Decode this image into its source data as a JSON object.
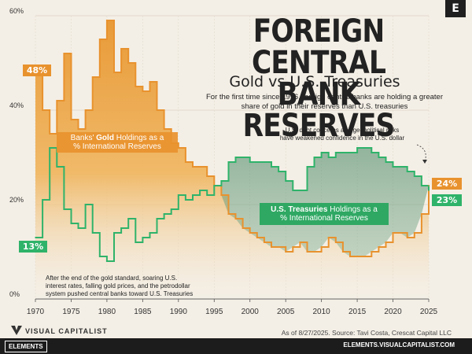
{
  "header": {
    "title_line1": "FOREIGN CENTRAL",
    "title_line2": "BANK RESERVES",
    "subtitle": "Gold vs U.S. Treasuries",
    "intro": "For the first time since 1996, foreign central banks are holding a greater share of gold in their reserves than U.S. treasuries",
    "badge": "E"
  },
  "annotations": {
    "gold_label_prefix": "Banks' ",
    "gold_label_bold": "Gold",
    "gold_label_suffix": " Holdings as a",
    "gold_label_line2": "% International Reserves",
    "treasury_label_bold": "U.S. Treasuries",
    "treasury_label_suffix": " Holdings as a",
    "treasury_label_line2": "% International Reserves",
    "debt_note_line1": "U.S. debt concerns and geopolitical risks",
    "debt_note_line2": "have weakened confidence in the U.S. dollar",
    "history_note_line1": "After the end of the gold standard, soaring U.S.",
    "history_note_line2": "interest rates, falling gold prices, and the petrodollar",
    "history_note_line3": "system pushed central banks toward U.S. Treasuries",
    "gold_start_badge": "48%",
    "gold_end_badge": "24%",
    "treasury_start_badge": "13%",
    "treasury_end_badge": "23%"
  },
  "footer": {
    "brand": "VISUAL CAPITALIST",
    "source": "As of 8/27/2025. Source: Tavi Costa, Crescat Capital LLC",
    "left_tag": "ELEMENTS",
    "right_url": "ELEMENTS.VISUALCAPITALIST.COM"
  },
  "colors": {
    "gold": "#e8922e",
    "gold_light": "#f2b860",
    "treasury": "#2fb36a",
    "treasury_dark": "#2c6e4f",
    "background": "#f4efe6"
  },
  "chart_data": {
    "type": "line",
    "title": "Foreign Central Bank Reserves",
    "xlim": [
      1970,
      2025
    ],
    "ylim": [
      0,
      60
    ],
    "x_ticks": [
      "1970",
      "1975",
      "1980",
      "1985",
      "1990",
      "1995",
      "2000",
      "2005",
      "2010",
      "2015",
      "2020",
      "2025"
    ],
    "y_ticks": [
      "0%",
      "20%",
      "40%",
      "60%"
    ],
    "grid": true,
    "series": [
      {
        "name": "Gold",
        "x": [
          1970,
          1971,
          1972,
          1973,
          1974,
          1975,
          1976,
          1977,
          1978,
          1979,
          1980,
          1981,
          1982,
          1983,
          1984,
          1985,
          1986,
          1987,
          1988,
          1989,
          1990,
          1991,
          1992,
          1993,
          1994,
          1995,
          1996,
          1997,
          1998,
          1999,
          2000,
          2001,
          2002,
          2003,
          2004,
          2005,
          2006,
          2007,
          2008,
          2009,
          2010,
          2011,
          2012,
          2013,
          2014,
          2015,
          2016,
          2017,
          2018,
          2019,
          2020,
          2021,
          2022,
          2023,
          2024,
          2025
        ],
        "values": [
          48,
          40,
          35,
          42,
          52,
          38,
          36,
          40,
          47,
          55,
          59,
          48,
          53,
          50,
          45,
          44,
          46,
          40,
          36,
          33,
          32,
          29,
          28,
          28,
          26,
          24,
          22,
          18,
          17,
          15,
          14,
          13,
          12,
          11,
          11,
          10,
          11,
          12,
          10,
          10,
          11,
          13,
          12,
          10,
          9,
          9,
          9,
          10,
          11,
          12,
          14,
          14,
          13,
          14,
          18,
          24
        ]
      },
      {
        "name": "U.S. Treasuries",
        "x": [
          1970,
          1971,
          1972,
          1973,
          1974,
          1975,
          1976,
          1977,
          1978,
          1979,
          1980,
          1981,
          1982,
          1983,
          1984,
          1985,
          1986,
          1987,
          1988,
          1989,
          1990,
          1991,
          1992,
          1993,
          1994,
          1995,
          1996,
          1997,
          1998,
          1999,
          2000,
          2001,
          2002,
          2003,
          2004,
          2005,
          2006,
          2007,
          2008,
          2009,
          2010,
          2011,
          2012,
          2013,
          2014,
          2015,
          2016,
          2017,
          2018,
          2019,
          2020,
          2021,
          2022,
          2023,
          2024,
          2025
        ],
        "values": [
          13,
          21,
          32,
          28,
          19,
          16,
          15,
          20,
          14,
          9,
          8,
          14,
          15,
          17,
          12,
          13,
          14,
          17,
          18,
          19,
          22,
          21,
          22,
          23,
          22,
          24,
          25,
          29,
          30,
          30,
          29,
          29,
          29,
          28,
          27,
          25,
          23,
          23,
          28,
          30,
          31,
          30,
          31,
          31,
          31,
          32,
          32,
          31,
          30,
          29,
          28,
          28,
          27,
          26,
          24,
          23
        ]
      }
    ]
  }
}
